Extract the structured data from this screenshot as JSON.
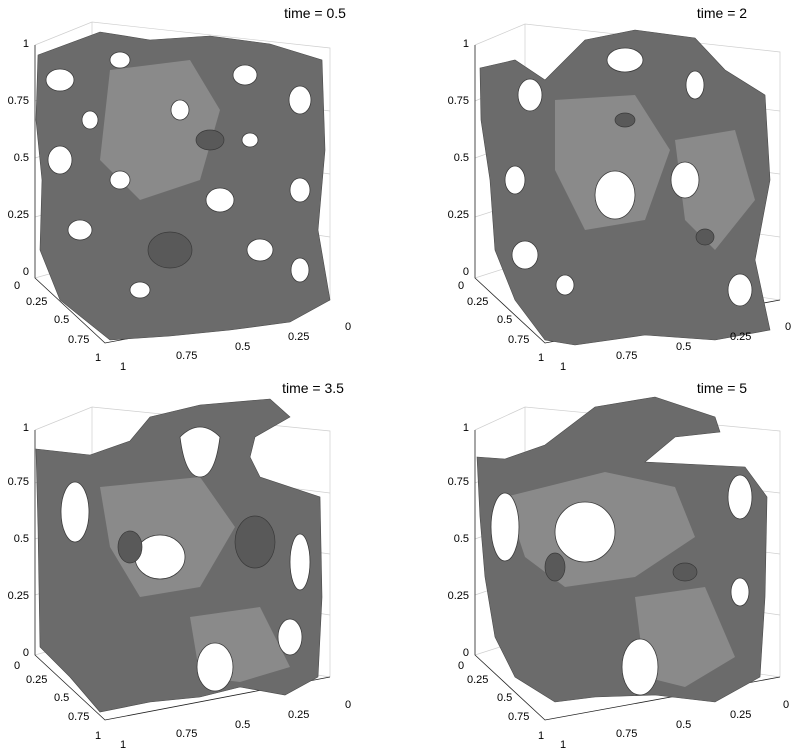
{
  "chart_data": [
    {
      "type": "3d-isosurface",
      "title": "time = 0.5",
      "z_ticks": [
        "0",
        "0.25",
        "0.5",
        "0.75",
        "1"
      ],
      "x_ticks": [
        "0",
        "0.25",
        "0.5",
        "0.75",
        "1"
      ],
      "y_ticks": [
        "1",
        "0.75",
        "0.5",
        "0.25",
        "0"
      ],
      "xlim": [
        0,
        1
      ],
      "ylim": [
        0,
        1
      ],
      "zlim": [
        0,
        1
      ],
      "surface_color": "#6b6b6b",
      "grid": true
    },
    {
      "type": "3d-isosurface",
      "title": "time = 2",
      "z_ticks": [
        "0",
        "0.25",
        "0.5",
        "0.75",
        "1"
      ],
      "x_ticks": [
        "0",
        "0.25",
        "0.5",
        "0.75",
        "1"
      ],
      "y_ticks": [
        "1",
        "0.75",
        "0.5",
        "0.25",
        "0"
      ],
      "xlim": [
        0,
        1
      ],
      "ylim": [
        0,
        1
      ],
      "zlim": [
        0,
        1
      ],
      "surface_color": "#6b6b6b",
      "grid": true
    },
    {
      "type": "3d-isosurface",
      "title": "time = 3.5",
      "z_ticks": [
        "0",
        "0.25",
        "0.5",
        "0.75",
        "1"
      ],
      "x_ticks": [
        "0",
        "0.25",
        "0.5",
        "0.75",
        "1"
      ],
      "y_ticks": [
        "1",
        "0.75",
        "0.5",
        "0.25",
        "0"
      ],
      "xlim": [
        0,
        1
      ],
      "ylim": [
        0,
        1
      ],
      "zlim": [
        0,
        1
      ],
      "surface_color": "#6b6b6b",
      "grid": true
    },
    {
      "type": "3d-isosurface",
      "title": "time = 5",
      "z_ticks": [
        "0",
        "0.25",
        "0.5",
        "0.75",
        "1"
      ],
      "x_ticks": [
        "0",
        "0.25",
        "0.5",
        "0.75",
        "1"
      ],
      "y_ticks": [
        "1",
        "0.75",
        "0.5",
        "0.25",
        "0"
      ],
      "xlim": [
        0,
        1
      ],
      "ylim": [
        0,
        1
      ],
      "zlim": [
        0,
        1
      ],
      "surface_color": "#6b6b6b",
      "grid": true
    }
  ]
}
